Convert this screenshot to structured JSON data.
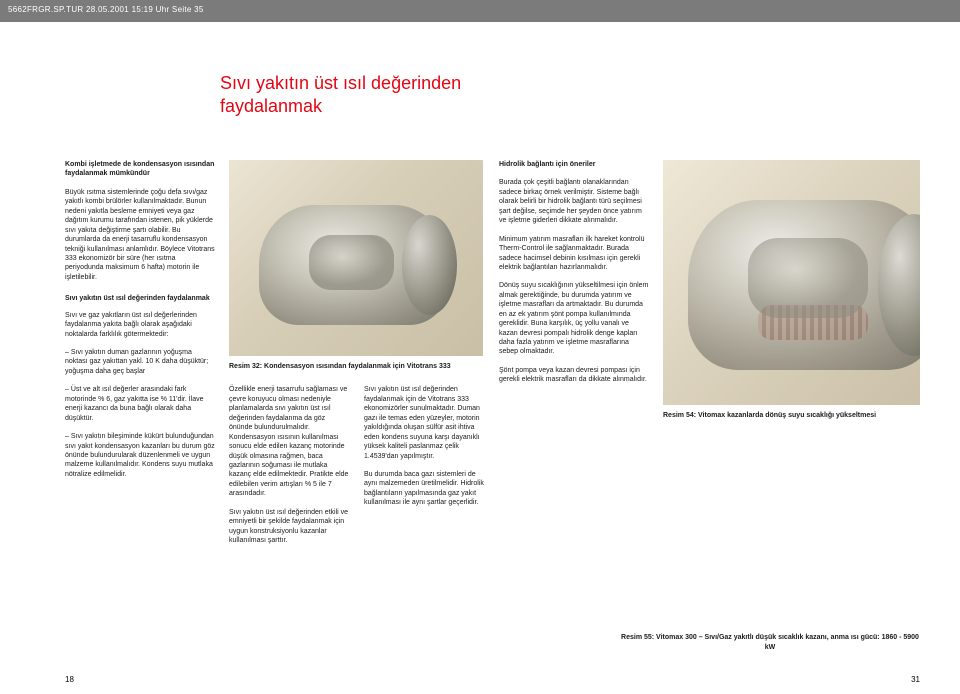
{
  "header_strip": "5662FRGR.SP.TUR 28.05.2001 15:19 Uhr Seite 35",
  "page_title_line1": "Sıvı yakıtın üst ısıl değerinden",
  "page_title_line2": "faydalanmak",
  "left": {
    "h1": "Kombi işletmede de kondensasyon ısısından faydalanmak mümkündür",
    "p1": "Büyük ısıtma sistemlerinde çoğu defa sıvı/gaz yakıtlı kombi brülörler kullanılmaktadır. Bunun nedeni yakıtla besleme emniyeti veya gaz dağıtım kurumu tarafından istenen, pik yüklerde sıvı yakıta değiştirme şartı olabilir. Bu durumlarda da enerji tasarruflu kondensasyon tekniği kullanılması anlamlıdır. Böylece Vitotrans 333 ekonomizör bir süre (her ısıtma periyodunda maksimum 6 hafta) motorin ile işletilebilir.",
    "h2": "Sıvı yakıtın üst ısıl değerinden faydalanmak",
    "p2": "Sıvı ve gaz yakıtların üst ısıl değerlerinden faydalanma yakıta bağlı olarak aşağıdaki noktalarda farklılık götermektedir:",
    "b1": "– Sıvı yakıtın duman gazlarının yoğuşma noktası gaz yakıttan yakl. 10 K daha düşüktür; yoğuşma daha geç başlar",
    "b2": "– Üst ve alt ısıl değerler arasındaki fark motorinde % 6, gaz yakıtta ise % 11'dir. İlave enerji kazancı da buna bağlı olarak daha düşüktür.",
    "b3": "– Sıvı yakıtın bileşiminde kükürt bulunduğundan sıvı yakıt kondensasyon kazanları bu durum göz önünde bulundurularak düzenlenmeli ve uygun malzeme kullanılmalıdır. Kondens suyu mutlaka nötralize edilmelidir."
  },
  "mid": {
    "caption32": "Resim 32: Kondensasyon ısısından faydalanmak için Vitotrans 333",
    "col_a": "Özellikle enerji tasarrufu sağlaması ve çevre koruyucu olması nedeniyle planlamalarda sıvı yakıtın üst ısıl değerinden faydalanma da göz önünde bulundurulmalıdır. Kondensasyon ısısının kullanılması sonucu elde edilen kazanç motorinde düşük olmasına rağmen, baca gazlarının soğuması ile mutlaka kazanç elde edilmektedir. Pratikte elde edilebilen verim artışları % 5 ile 7 arasındadır.",
    "col_a2": "Sıvı yakıtın üst ısıl değerinden etkili ve emniyetli bir şekilde faydalanmak için uygun konstruksiyonlu kazanlar kullanılması şarttır.",
    "col_b": "Sıvı yakıtın üst ısıl değerinden faydalanmak için de Vitotrans 333 ekonomizörler sunulmaktadır. Duman gazı ile temas eden yüzeyler, motorin yakıldığında oluşan sülfür asit ihtiva eden kondens suyuna karşı dayanıklı yüksek kaliteli paslanmaz çelik 1.4539'dan yapılmıştır.",
    "col_b2": "Bu durumda baca gazı sistemleri de aynı malzemeden üretilmelidir. Hidrolik bağlantıların yapılmasında gaz yakıt kullanılması ile aynı şartlar geçerlidir."
  },
  "right": {
    "h1": "Hidrolik bağlantı için öneriler",
    "p1": "Burada çok çeşitli bağlantı olanaklarından sadece birkaç örnek verilmiştir. Sisteme bağlı olarak belirli bir hidrolik bağlantı türü seçilmesi şart değilse, seçimde her şeyden önce yatırım ve işletme giderleri dikkate alınmalıdır.",
    "p2": "Minimum yatırım masrafları ilk hareket kontrolü Therm-Control ile sağlanmaktadır. Burada sadece hacimsel debinin kısılması için gerekli elektrik bağlantıları hazırlanmalıdır.",
    "p3": "Dönüş suyu sıcaklığının yükseltilmesi için önlem almak gerektiğinde, bu durumda yatırım ve işletme masrafları da artmaktadır. Bu durumda en az ek yatırım şönt pompa kullanılmında gereklidir. Buna karşılık, üç yollu vanalı ve kazan devresi pompalı hidrolik denge kapları daha fazla yatırım ve işletme masraflarına sebep olmaktadır.",
    "p4": "Şönt pompa veya kazan devresi pompası için gerekli elektrik masraﬂarı da dikkate alınmalıdır.",
    "caption54": "Resim 54: Vitomax kazanlarda dönüş suyu sıcaklığı yükseltmesi",
    "caption55": "Resim 55: Vitomax 300 – Sıvı/Gaz yakıtlı düşük sıcaklık kazanı, anma ısı gücü: 1860 - 5900 kW"
  },
  "page_left": "18",
  "page_right": "31",
  "colors": {
    "strip": "#7b7b7b",
    "title": "#e30613",
    "text": "#1a1a1a"
  }
}
